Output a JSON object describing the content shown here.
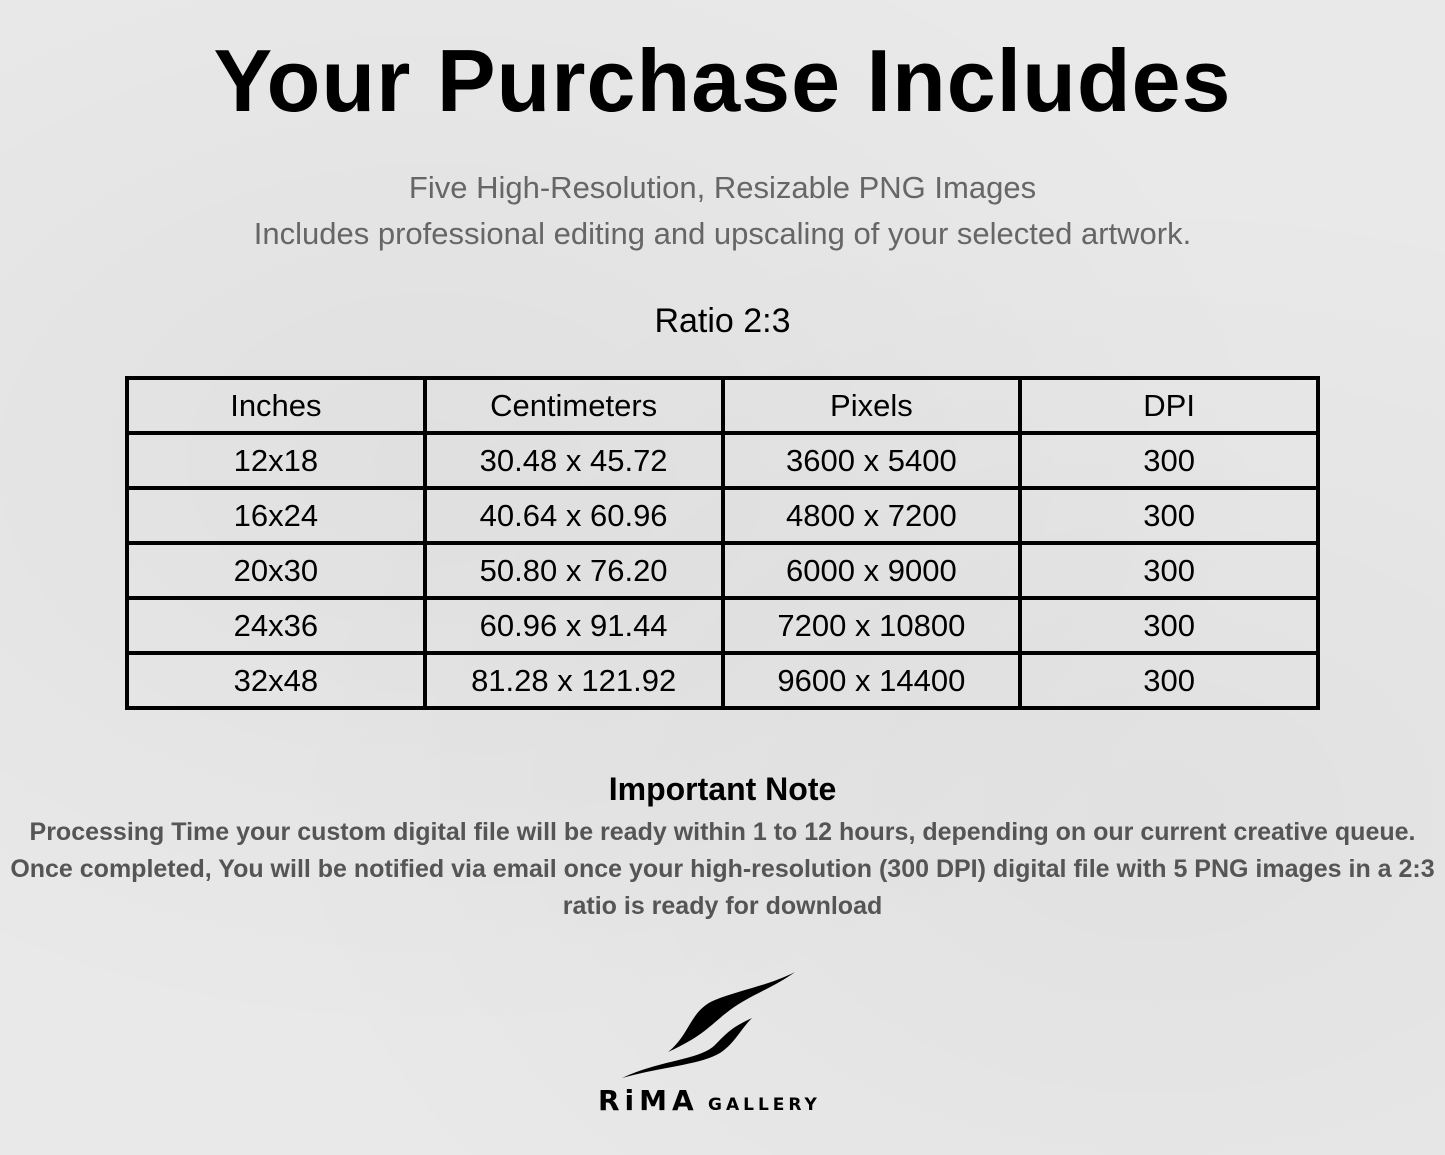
{
  "header": {
    "title": "Your Purchase Includes",
    "subtitle_1": "Five High-Resolution, Resizable PNG Images",
    "subtitle_2": "Includes professional editing and upscaling of your selected artwork."
  },
  "ratio_label": "Ratio 2:3",
  "table": {
    "columns": [
      "Inches",
      "Centimeters",
      "Pixels",
      "DPI"
    ],
    "rows": [
      [
        "12x18",
        "30.48 x 45.72",
        "3600 x 5400",
        "300"
      ],
      [
        "16x24",
        "40.64 x 60.96",
        "4800 x 7200",
        "300"
      ],
      [
        "20x30",
        "50.80 x 76.20",
        "6000 x 9000",
        "300"
      ],
      [
        "24x36",
        "60.96 x 91.44",
        "7200 x 10800",
        "300"
      ],
      [
        "32x48",
        "81.28 x 121.92",
        "9600 x 14400",
        "300"
      ]
    ]
  },
  "note": {
    "title": "Important Note",
    "body": "Processing Time your custom digital file will be ready within 1 to 12 hours, depending on our current creative queue. Once completed, You will be notified via email once your high-resolution (300 DPI) digital file with 5 PNG images in a 2:3 ratio is ready for download"
  },
  "logo": {
    "text": "RiMA GALLERY"
  }
}
